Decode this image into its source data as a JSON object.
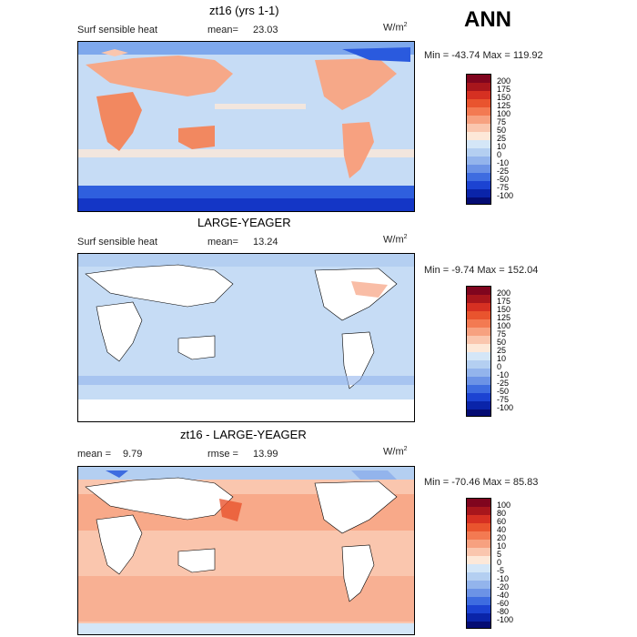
{
  "overall": {
    "season": "ANN"
  },
  "panels": [
    {
      "title": "zt16 (yrs 1-1)",
      "variable": "Surf sensible heat",
      "stat1_label": "mean=",
      "stat1_value": "23.03",
      "stat2_label": "",
      "stat2_value": "",
      "units_main": "W/m",
      "units_exp": "2",
      "minmax": "Min = -43.74 Max = 119.92",
      "colorbar": {
        "labels": [
          "200",
          "175",
          "150",
          "125",
          "100",
          "75",
          "50",
          "25",
          "10",
          "0",
          "-10",
          "-25",
          "-50",
          "-75",
          "-100"
        ],
        "colors": [
          "#80051e",
          "#a8161c",
          "#d63022",
          "#e9542e",
          "#f37a52",
          "#f7a180",
          "#fac6ae",
          "#fde8d8",
          "#d4e6f7",
          "#b4cff1",
          "#93b4ec",
          "#6c93e6",
          "#3e6ce0",
          "#1c43d2",
          "#0a24a9",
          "#040c73"
        ]
      }
    },
    {
      "title": "LARGE-YEAGER",
      "variable": "Surf sensible heat",
      "stat1_label": "mean=",
      "stat1_value": "13.24",
      "stat2_label": "",
      "stat2_value": "",
      "units_main": "W/m",
      "units_exp": "2",
      "minmax": "Min = -9.74 Max = 152.04",
      "colorbar": {
        "labels": [
          "200",
          "175",
          "150",
          "125",
          "100",
          "75",
          "50",
          "25",
          "10",
          "0",
          "-10",
          "-25",
          "-50",
          "-75",
          "-100"
        ],
        "colors": [
          "#80051e",
          "#a8161c",
          "#d63022",
          "#e9542e",
          "#f37a52",
          "#f7a180",
          "#fac6ae",
          "#fde8d8",
          "#d4e6f7",
          "#b4cff1",
          "#93b4ec",
          "#6c93e6",
          "#3e6ce0",
          "#1c43d2",
          "#0a24a9",
          "#040c73"
        ]
      }
    },
    {
      "title": "zt16 - LARGE-YEAGER",
      "variable": "",
      "stat1_label": "mean =",
      "stat1_value": "9.79",
      "stat2_label": "rmse =",
      "stat2_value": "13.99",
      "units_main": "W/m",
      "units_exp": "2",
      "minmax": "Min = -70.46 Max = 85.83",
      "colorbar": {
        "labels": [
          "100",
          "80",
          "60",
          "40",
          "20",
          "10",
          "5",
          "0",
          "-5",
          "-10",
          "-20",
          "-40",
          "-60",
          "-80",
          "-100"
        ],
        "colors": [
          "#80051e",
          "#a8161c",
          "#d63022",
          "#e9542e",
          "#f37a52",
          "#f7a180",
          "#fac6ae",
          "#fde8d8",
          "#d4e6f7",
          "#b4cff1",
          "#93b4ec",
          "#6c93e6",
          "#3e6ce0",
          "#1c43d2",
          "#0a24a9",
          "#040c73"
        ]
      }
    }
  ]
}
